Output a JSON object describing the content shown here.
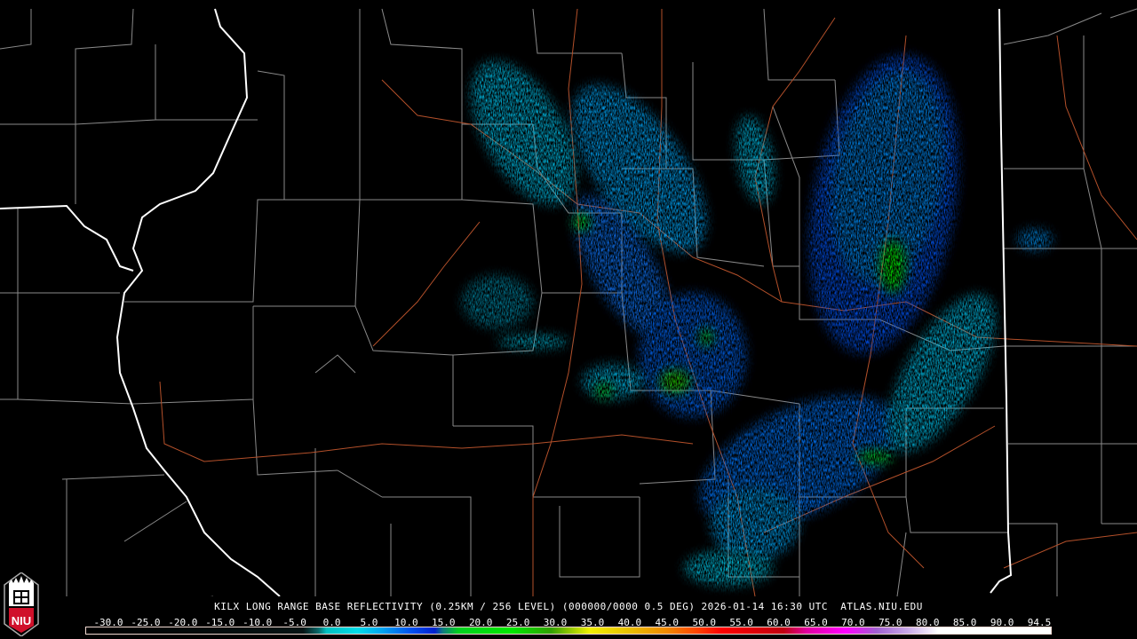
{
  "map": {
    "background": "#000000",
    "county_line_color": "#8a8a8a",
    "state_line_color": "#ffffff",
    "highway_color": "#b4502a",
    "radar_site": "KILX"
  },
  "title": "KILX LONG RANGE BASE REFLECTIVITY (0.25KM / 256 LEVEL) (000000/0000 0.5 DEG) 2026-01-14 16:30 UTC  ATLAS.NIU.EDU",
  "logo": {
    "text": "NIU",
    "color": "#d0102a"
  },
  "colorbar": {
    "min": -30.0,
    "max": 94.5,
    "labels": [
      "-30.0",
      "-25.0",
      "-20.0",
      "-15.0",
      "-10.0",
      "-5.0",
      "0.0",
      "5.0",
      "10.0",
      "15.0",
      "20.0",
      "25.0",
      "30.0",
      "35.0",
      "40.0",
      "45.0",
      "50.0",
      "55.0",
      "60.0",
      "65.0",
      "70.0",
      "75.0",
      "80.0",
      "85.0",
      "90.0",
      "94.5"
    ],
    "stops": [
      {
        "v": -30,
        "c": "#000000"
      },
      {
        "v": -2,
        "c": "#061414"
      },
      {
        "v": 0,
        "c": "#0a6a6a"
      },
      {
        "v": 1,
        "c": "#00c0c0"
      },
      {
        "v": 5,
        "c": "#00dce8"
      },
      {
        "v": 8,
        "c": "#00a8f0"
      },
      {
        "v": 12,
        "c": "#0050f0"
      },
      {
        "v": 15,
        "c": "#0020d0"
      },
      {
        "v": 16,
        "c": "#107a80"
      },
      {
        "v": 18,
        "c": "#00d020"
      },
      {
        "v": 25,
        "c": "#00e800"
      },
      {
        "v": 30,
        "c": "#30a000"
      },
      {
        "v": 32,
        "c": "#80c000"
      },
      {
        "v": 35,
        "c": "#f0f000"
      },
      {
        "v": 40,
        "c": "#e8c000"
      },
      {
        "v": 45,
        "c": "#f08800"
      },
      {
        "v": 49,
        "c": "#ff4000"
      },
      {
        "v": 52,
        "c": "#ff0000"
      },
      {
        "v": 60,
        "c": "#c00010"
      },
      {
        "v": 63,
        "c": "#e000a0"
      },
      {
        "v": 68,
        "c": "#ff00ff"
      },
      {
        "v": 72,
        "c": "#a060d0"
      },
      {
        "v": 76,
        "c": "#c8a8e8"
      },
      {
        "v": 80,
        "c": "#ffffff"
      },
      {
        "v": 94.5,
        "c": "#ffffff"
      }
    ]
  }
}
